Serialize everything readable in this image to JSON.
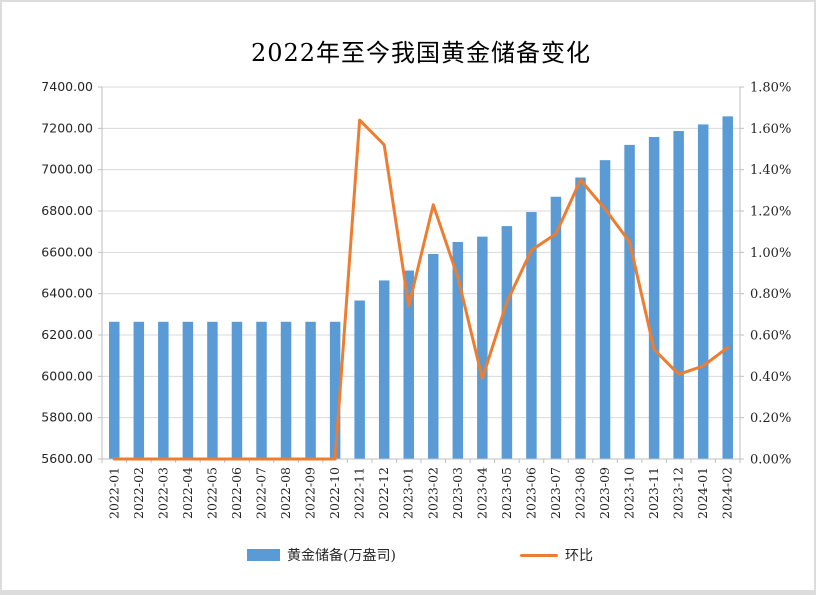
{
  "window": {
    "background": "#ffffff",
    "border_color": "#dcdcdc"
  },
  "chart_data": {
    "type": "bar+line combo",
    "title": "2022年至今我国黄金储备变化",
    "grid": true,
    "legend_position": "bottom",
    "categories": [
      "2022-01",
      "2022-02",
      "2022-03",
      "2022-04",
      "2022-05",
      "2022-06",
      "2022-07",
      "2022-08",
      "2022-09",
      "2022-10",
      "2022-11",
      "2022-12",
      "2023-01",
      "2023-02",
      "2023-03",
      "2023-04",
      "2023-05",
      "2023-06",
      "2023-07",
      "2023-08",
      "2023-09",
      "2023-10",
      "2023-11",
      "2023-12",
      "2024-01",
      "2024-02"
    ],
    "series": [
      {
        "name": "黄金储备(万盎司)",
        "type": "bar",
        "axis": "left",
        "color": "#5B9BD5",
        "values": [
          6264,
          6264,
          6264,
          6264,
          6264,
          6264,
          6264,
          6264,
          6264,
          6264,
          6367,
          6464,
          6512,
          6592,
          6650,
          6676,
          6727,
          6795,
          6869,
          6962,
          7046,
          7120,
          7158,
          7187,
          7219,
          7258
        ]
      },
      {
        "name": "环比",
        "type": "line",
        "axis": "right",
        "color": "#ED7D31",
        "values_percent": [
          0.0,
          0.0,
          0.0,
          0.0,
          0.0,
          0.0,
          0.0,
          0.0,
          0.0,
          0.0,
          1.64,
          1.52,
          0.74,
          1.23,
          0.88,
          0.39,
          0.76,
          1.01,
          1.09,
          1.35,
          1.21,
          1.05,
          0.53,
          0.41,
          0.45,
          0.54
        ]
      }
    ],
    "left_axis": {
      "min": 5600,
      "max": 7400,
      "step": 200,
      "tick_labels": [
        "5600.00",
        "5800.00",
        "6000.00",
        "6200.00",
        "6400.00",
        "6600.00",
        "6800.00",
        "7000.00",
        "7200.00",
        "7400.00"
      ]
    },
    "right_axis": {
      "min": 0.0,
      "max": 1.8,
      "step": 0.2,
      "tick_labels": [
        "0.00%",
        "0.20%",
        "0.40%",
        "0.60%",
        "0.80%",
        "1.00%",
        "1.20%",
        "1.40%",
        "1.60%",
        "1.80%"
      ]
    },
    "colors": {
      "gridline": "#d9d9d9",
      "axis_line": "#bfbfbf",
      "tick_text": "#262626"
    }
  }
}
